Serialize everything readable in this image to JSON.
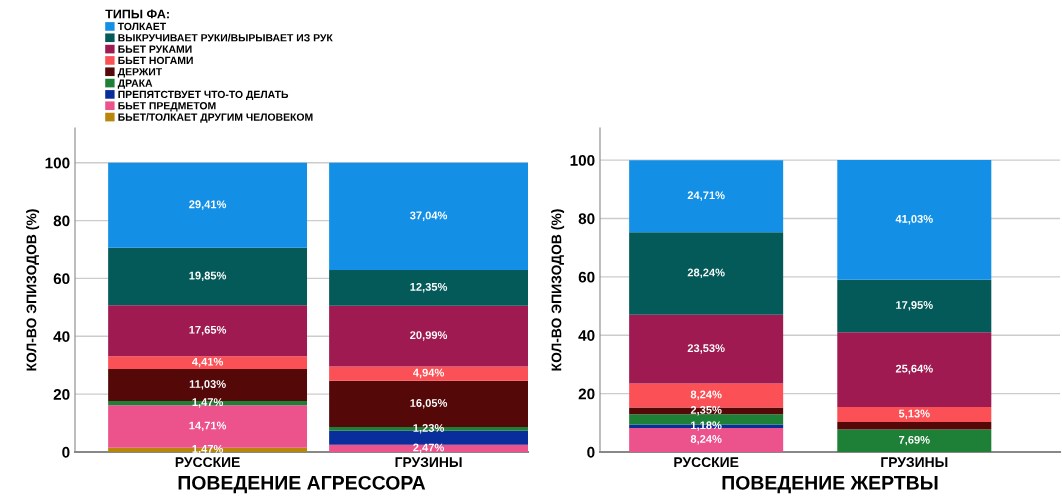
{
  "chart_data": [
    {
      "type": "bar",
      "stacked": true,
      "xlabel": "ПОВЕДЕНИЕ АГРЕССОРА",
      "ylabel": "КОЛ-ВО ЭПИЗОДОВ (%)",
      "legend_title": "ТИПЫ ФА:",
      "legend": "top left",
      "grid": "y",
      "categories": [
        "РУССКИЕ",
        "ГРУЗИНЫ"
      ],
      "ylim": [
        0,
        112
      ],
      "yticks": [
        0,
        20,
        40,
        60,
        80,
        100
      ],
      "series": [
        {
          "name": "БЬЕТ/ТОЛКАЕТ ДРУГИМ ЧЕЛОВЕКОМ",
          "color": "#b8860b",
          "values": [
            1.47,
            0
          ],
          "value_labels": [
            "1,47%",
            null
          ]
        },
        {
          "name": "БЬЕТ ПРЕДМЕТОМ",
          "color": "#ec528c",
          "values": [
            14.71,
            2.47
          ],
          "value_labels": [
            "14,71%",
            "2,47%"
          ]
        },
        {
          "name": "ПРЕПЯТСТВУЕТ ЧТО-ТО ДЕЛАТЬ",
          "color": "#0a2d9c",
          "values": [
            0,
            4.9
          ],
          "value_labels": [
            null,
            null
          ]
        },
        {
          "name": "ДРАКА",
          "color": "#1e8036",
          "values": [
            1.47,
            1.23
          ],
          "value_labels": [
            "1,47%",
            "1,23%"
          ]
        },
        {
          "name": "ДЕРЖИТ",
          "color": "#540808",
          "values": [
            11.03,
            16.05
          ],
          "value_labels": [
            "11,03%",
            "16,05%"
          ]
        },
        {
          "name": "БЬЕТ НОГАМИ",
          "color": "#fb5056",
          "values": [
            4.41,
            4.94
          ],
          "value_labels": [
            "4,41%",
            "4,94%"
          ]
        },
        {
          "name": "БЬЕТ РУКАМИ",
          "color": "#9e1a50",
          "values": [
            17.65,
            20.99
          ],
          "value_labels": [
            "17,65%",
            "20,99%"
          ]
        },
        {
          "name": "ВЫКРУЧИВАЕТ РУКИ/ВЫРЫВАЕТ ИЗ РУК",
          "color": "#035a59",
          "values": [
            19.85,
            12.35
          ],
          "value_labels": [
            "19,85%",
            "12,35%"
          ]
        },
        {
          "name": "ТОЛКАЕТ",
          "color": "#1390e6",
          "values": [
            29.41,
            37.04
          ],
          "value_labels": [
            "29,41%",
            "37,04%"
          ]
        }
      ]
    },
    {
      "type": "bar",
      "stacked": true,
      "xlabel": "ПОВЕДЕНИЕ ЖЕРТВЫ",
      "ylabel": "КОЛ-ВО ЭПИЗОДОВ (%)",
      "grid": "y",
      "categories": [
        "РУССКИЕ",
        "ГРУЗИНЫ"
      ],
      "ylim": [
        0,
        111
      ],
      "yticks": [
        0,
        20,
        40,
        60,
        80,
        100
      ],
      "series": [
        {
          "color": "#b8860b",
          "values": [
            0,
            0
          ],
          "value_labels": [
            null,
            null
          ]
        },
        {
          "color": "#ec528c",
          "values": [
            8.24,
            0
          ],
          "value_labels": [
            "8,24%",
            null
          ]
        },
        {
          "color": "#0a2d9c",
          "values": [
            1.18,
            0
          ],
          "value_labels": [
            "1,18%",
            null
          ]
        },
        {
          "color": "#1e8036",
          "values": [
            3.5,
            7.69
          ],
          "value_labels": [
            null,
            "7,69%"
          ]
        },
        {
          "color": "#540808",
          "values": [
            2.35,
            2.6
          ],
          "value_labels": [
            "2,35%",
            null
          ]
        },
        {
          "color": "#fb5056",
          "values": [
            8.24,
            5.13
          ],
          "value_labels": [
            "8,24%",
            "5,13%"
          ]
        },
        {
          "color": "#9e1a50",
          "values": [
            23.53,
            25.64
          ],
          "value_labels": [
            "23,53%",
            "25,64%"
          ]
        },
        {
          "color": "#035a59",
          "values": [
            28.24,
            17.95
          ],
          "value_labels": [
            "28,24%",
            "17,95%"
          ]
        },
        {
          "color": "#1390e6",
          "values": [
            24.71,
            41.03
          ],
          "value_labels": [
            "24,71%",
            "41,03%"
          ]
        }
      ]
    }
  ]
}
